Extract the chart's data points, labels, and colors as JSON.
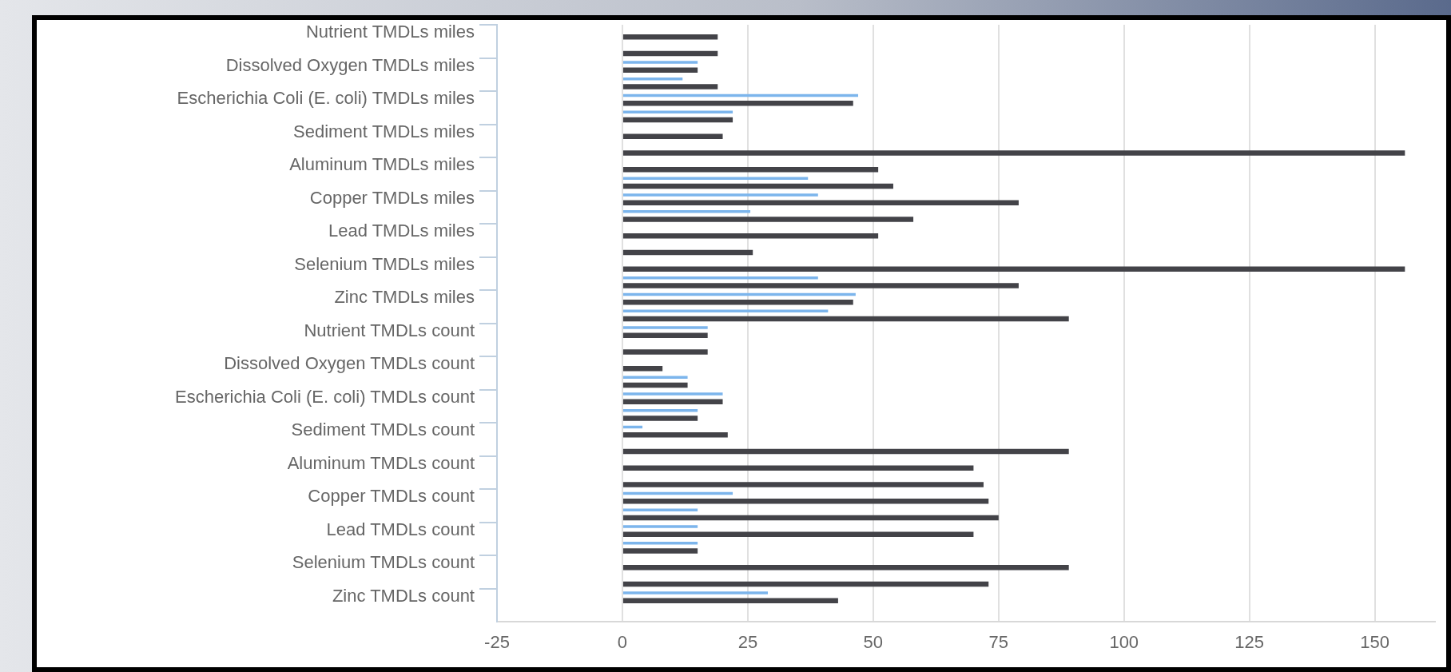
{
  "chart_data": {
    "type": "bar",
    "orientation": "horizontal",
    "categories": [
      "Nutrient TMDLs miles",
      null,
      "Dissolved Oxygen TMDLs miles",
      null,
      "Escherichia Coli (E. coli) TMDLs miles",
      null,
      "Sediment TMDLs miles",
      null,
      "Aluminum TMDLs miles",
      null,
      "Copper TMDLs miles",
      null,
      "Lead TMDLs miles",
      null,
      "Selenium TMDLs miles",
      null,
      "Zinc TMDLs miles",
      null,
      "Nutrient TMDLs count",
      null,
      "Dissolved Oxygen TMDLs count",
      null,
      "Escherichia Coli (E. coli) TMDLs count",
      null,
      "Sediment TMDLs count",
      null,
      "Aluminum TMDLs count",
      null,
      "Copper TMDLs count",
      null,
      "Lead TMDLs count",
      null,
      "Selenium TMDLs count",
      null,
      "Zinc TMDLs count",
      null
    ],
    "series": [
      {
        "color": "#7cb5ec",
        "values": [
          null,
          null,
          15,
          12,
          47,
          22,
          null,
          null,
          null,
          37,
          39,
          25.5,
          null,
          null,
          null,
          39,
          46.5,
          41,
          17,
          null,
          null,
          13,
          20,
          15,
          4,
          null,
          null,
          null,
          22,
          15,
          15,
          15,
          null,
          null,
          29,
          null
        ]
      },
      {
        "color": "#434348",
        "values": [
          19,
          19,
          15,
          19,
          46,
          22,
          20,
          156,
          51,
          54,
          79,
          58,
          51,
          26,
          156,
          79,
          46,
          89,
          17,
          17,
          8,
          13,
          20,
          15,
          21,
          89,
          70,
          72,
          73,
          75,
          70,
          15,
          89,
          73,
          43,
          null
        ]
      }
    ],
    "xlim": [
      -25,
      162
    ],
    "xticks": [
      -25,
      0,
      25,
      50,
      75,
      100,
      125,
      150
    ],
    "grid": "x",
    "legend": false
  }
}
